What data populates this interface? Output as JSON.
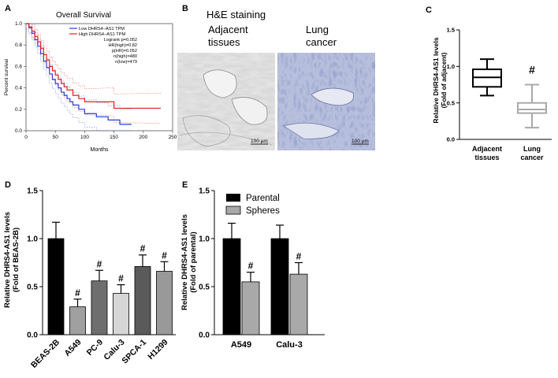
{
  "figure": {
    "panel_labels": [
      "A",
      "B",
      "C",
      "D",
      "E"
    ]
  },
  "chart_data": [
    {
      "panel": "A",
      "type": "line",
      "title": "Overall Survival",
      "xlabel": "Months",
      "ylabel": "Percent survival",
      "xlim": [
        0,
        250
      ],
      "ylim": [
        0,
        1
      ],
      "xticks": [
        0,
        50,
        100,
        150,
        200,
        250
      ],
      "yticks": [
        0.0,
        0.2,
        0.4,
        0.6,
        0.8,
        1.0
      ],
      "ytick_labels": [
        "0.0",
        "0.2",
        "0.4",
        "0.6",
        "0.8",
        "1.0"
      ],
      "legend_placement": "top-right",
      "stats": [
        "Logrank p=0.052",
        "HR(high)=0.82",
        "p(HR)=0.052",
        "n(high)=480",
        "n(low)=479"
      ],
      "series": [
        {
          "name": "Low DHRS4−AS1 TPM",
          "color": "#1f3ee0",
          "x": [
            0,
            5,
            10,
            15,
            20,
            25,
            30,
            35,
            40,
            45,
            50,
            55,
            60,
            65,
            70,
            75,
            80,
            90,
            100,
            120,
            140,
            160,
            180
          ],
          "y": [
            1.0,
            0.96,
            0.91,
            0.85,
            0.79,
            0.72,
            0.65,
            0.59,
            0.53,
            0.48,
            0.44,
            0.4,
            0.36,
            0.33,
            0.3,
            0.27,
            0.24,
            0.2,
            0.16,
            0.13,
            0.1,
            0.06,
            0.06
          ]
        },
        {
          "name": "High DHRS4−AS1 TPM",
          "color": "#e02020",
          "x": [
            0,
            5,
            10,
            15,
            20,
            25,
            30,
            35,
            40,
            45,
            50,
            55,
            60,
            65,
            70,
            80,
            90,
            100,
            120,
            140,
            150,
            200,
            230
          ],
          "y": [
            1.0,
            0.97,
            0.93,
            0.88,
            0.83,
            0.77,
            0.71,
            0.66,
            0.6,
            0.56,
            0.52,
            0.48,
            0.44,
            0.41,
            0.38,
            0.33,
            0.3,
            0.27,
            0.27,
            0.27,
            0.21,
            0.21,
            0.21
          ]
        }
      ]
    },
    {
      "panel": "C",
      "type": "box",
      "ylabel": "Relative DHRS4-AS1 levels\n(Fold of adjacent)",
      "ylim": [
        0,
        1.5
      ],
      "yticks": [
        0.0,
        0.5,
        1.0,
        1.5
      ],
      "ytick_labels": [
        "0.0",
        "0.5",
        "1.0",
        "1.5"
      ],
      "categories": [
        "Adjacent\ntissues",
        "Lung\ncancer"
      ],
      "boxes": [
        {
          "name": "Adjacent tissues",
          "min": 0.6,
          "q1": 0.72,
          "median": 0.85,
          "q3": 0.96,
          "max": 1.1,
          "color": "#000000"
        },
        {
          "name": "Lung cancer",
          "min": 0.16,
          "q1": 0.36,
          "median": 0.41,
          "q3": 0.5,
          "max": 0.75,
          "color": "#a9a9a9"
        }
      ],
      "annotations": [
        "",
        "#"
      ]
    },
    {
      "panel": "D",
      "type": "bar",
      "ylabel": "Relative DHRS4-AS1 levels\n(Fold of BEAS-2B)",
      "ylim": [
        0,
        1.5
      ],
      "yticks": [
        0.0,
        0.5,
        1.0,
        1.5
      ],
      "ytick_labels": [
        "0.0",
        "0.5",
        "1.0",
        "1.5"
      ],
      "categories": [
        "BEAS-2B",
        "A549",
        "PC-9",
        "Calu-3",
        "SPCA-1",
        "H1299"
      ],
      "values": [
        1.0,
        0.29,
        0.56,
        0.43,
        0.71,
        0.66
      ],
      "errors": [
        0.17,
        0.08,
        0.11,
        0.09,
        0.12,
        0.1
      ],
      "colors": [
        "#000000",
        "#a0a0a0",
        "#6e6e6e",
        "#d6d6d6",
        "#5a5a5a",
        "#999999"
      ],
      "annotations": [
        "",
        "#",
        "#",
        "#",
        "#",
        "#"
      ]
    },
    {
      "panel": "E",
      "type": "bar",
      "ylabel": "Relative DHRS4-AS1 levels\n(Fold of parental)",
      "ylim": [
        0,
        1.5
      ],
      "yticks": [
        0.0,
        0.5,
        1.0,
        1.5
      ],
      "ytick_labels": [
        "0.0",
        "0.5",
        "1.0",
        "1.5"
      ],
      "categories": [
        "A549",
        "Calu-3"
      ],
      "legend_placement": "top-left",
      "series": [
        {
          "name": "Parental",
          "color": "#000000",
          "values": [
            1.0,
            1.0
          ],
          "errors": [
            0.16,
            0.14
          ],
          "annotations": [
            "",
            ""
          ]
        },
        {
          "name": "Spheres",
          "color": "#a9a9a9",
          "values": [
            0.55,
            0.63
          ],
          "errors": [
            0.1,
            0.12
          ],
          "annotations": [
            "#",
            "#"
          ]
        }
      ]
    }
  ],
  "images": {
    "panel": "B",
    "title": "H&E staining",
    "label_left": "Adjacent\ntissues",
    "label_right": "Lung\ncancer",
    "scalebar": "100 µm"
  }
}
